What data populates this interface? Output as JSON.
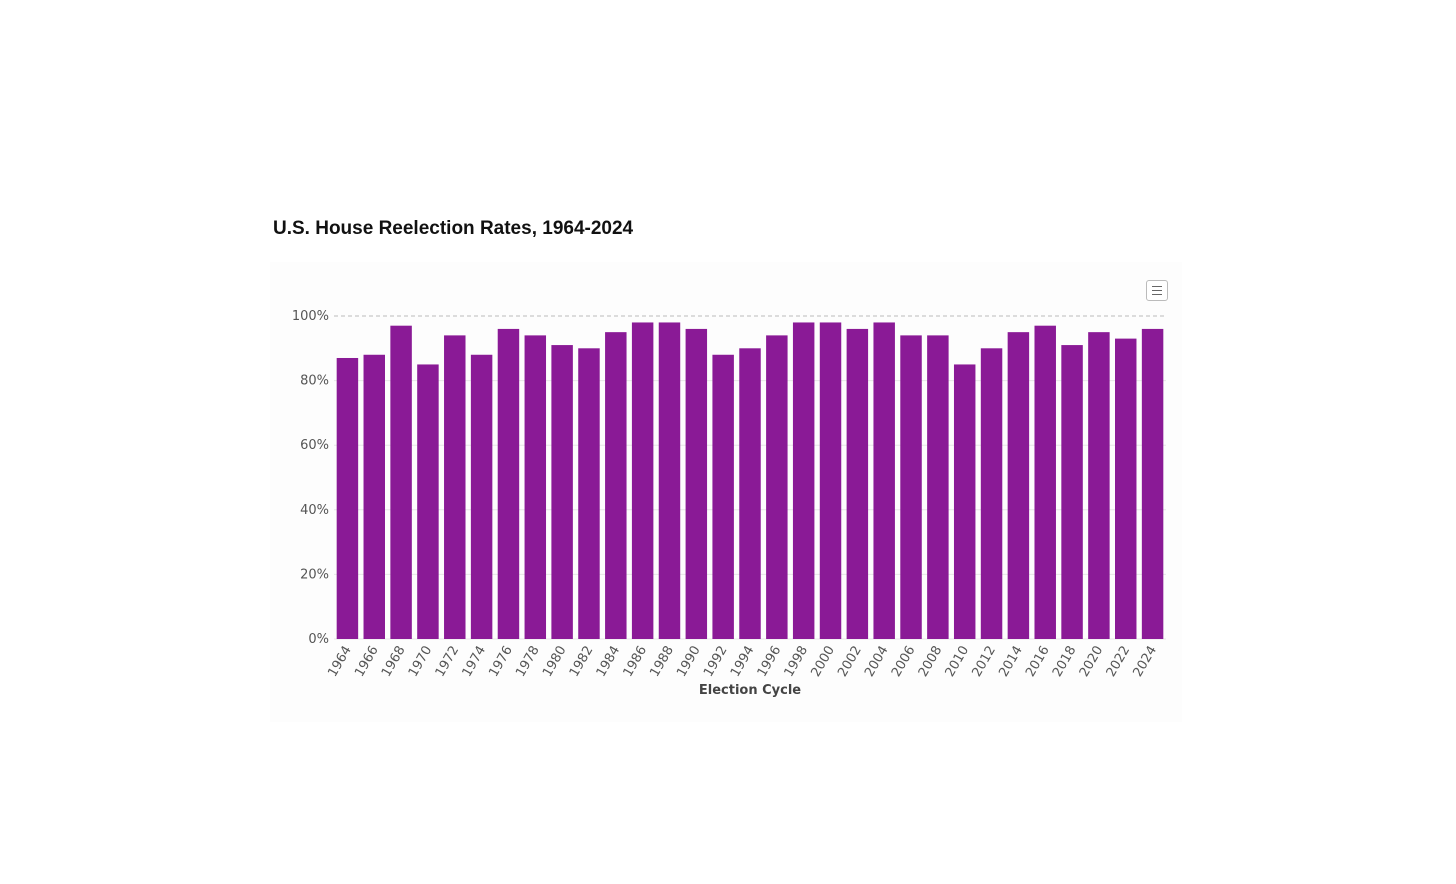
{
  "title": "U.S. House Reelection Rates, 1964-2024",
  "icons": {
    "menu": "hamburger-menu-icon"
  },
  "colors": {
    "bar": "#8a1a96",
    "grid": "#e6e6e6",
    "top_grid": "#bbbbbb"
  },
  "chart_data": {
    "type": "bar",
    "title": "U.S. House Reelection Rates, 1964-2024",
    "xlabel": "Election Cycle",
    "ylabel": "",
    "ylim": [
      0,
      100
    ],
    "yticks": [
      "0%",
      "20%",
      "40%",
      "60%",
      "80%",
      "100%"
    ],
    "categories": [
      "1964",
      "1966",
      "1968",
      "1970",
      "1972",
      "1974",
      "1976",
      "1978",
      "1980",
      "1982",
      "1984",
      "1986",
      "1988",
      "1990",
      "1992",
      "1994",
      "1996",
      "1998",
      "2000",
      "2002",
      "2004",
      "2006",
      "2008",
      "2010",
      "2012",
      "2014",
      "2016",
      "2018",
      "2020",
      "2022",
      "2024"
    ],
    "values": [
      87,
      88,
      97,
      85,
      94,
      88,
      96,
      94,
      91,
      90,
      95,
      98,
      98,
      96,
      88,
      90,
      94,
      98,
      98,
      96,
      98,
      94,
      94,
      85,
      90,
      95,
      97,
      91,
      95,
      93,
      96
    ],
    "grid": true,
    "legend": "none"
  }
}
